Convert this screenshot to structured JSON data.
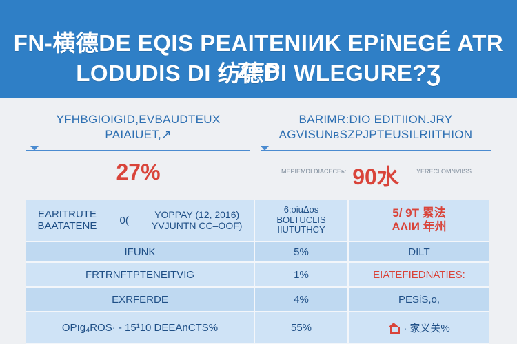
{
  "header": {
    "line1": "FN-横德DE EQIS PEAITENIИK EPiNEGÉ ATR ZFP",
    "line2": "LODUDIS DI 纺德DI WLEGURE?Ʒ"
  },
  "left_panel": {
    "title_line1": "YFHBGIOIGID,EVBAUDTEUX",
    "title_line2": "PAIAIUET,↗",
    "stat": "27%"
  },
  "right_panel": {
    "title_line1": "BARIMR:DIO EDITIION.JRY",
    "title_line2": "АGVISUNвSZPJPTEUSILRIITHION",
    "stat": "90水",
    "side_left": "MEPIEMDI DIACECEь:",
    "side_right": "YERECLOMNVIISS"
  },
  "table": {
    "header": {
      "col1_left_line1": "EARITRUTE",
      "col1_left_line2": "BAATATENE",
      "col1_mid": "0(",
      "col1_right_line1": "YOPPAY (12, 2016)",
      "col1_right_line2": "YVJUNTN CC–OOF)",
      "col2_line1": "6;oiuΔos",
      "col2_line2": "ΒOLTUCLIS",
      "col2_line3": "ΙIUTUTHCY",
      "col3_line1": "5/ 9Τ 累法",
      "col3_line2": "ΑΛΙИ 年州"
    },
    "rows": [
      {
        "label": "IFUNK",
        "value": "5%",
        "note": "DILT",
        "note_red": false,
        "icon": false
      },
      {
        "label": "FRTRNFTPTENEITVIG",
        "value": "1%",
        "note": "EIATEFIEDNATIES:",
        "note_red": true,
        "icon": false
      },
      {
        "label": "EXRFERDE",
        "value": "4%",
        "note": "PESiS,o,",
        "note_red": false,
        "icon": false
      },
      {
        "label": "OPıǥ₄ROS· - 15¹10 DEEAnCTS%",
        "value": "55%",
        "note": "· 家义关%",
        "note_red": false,
        "icon": true
      }
    ]
  }
}
